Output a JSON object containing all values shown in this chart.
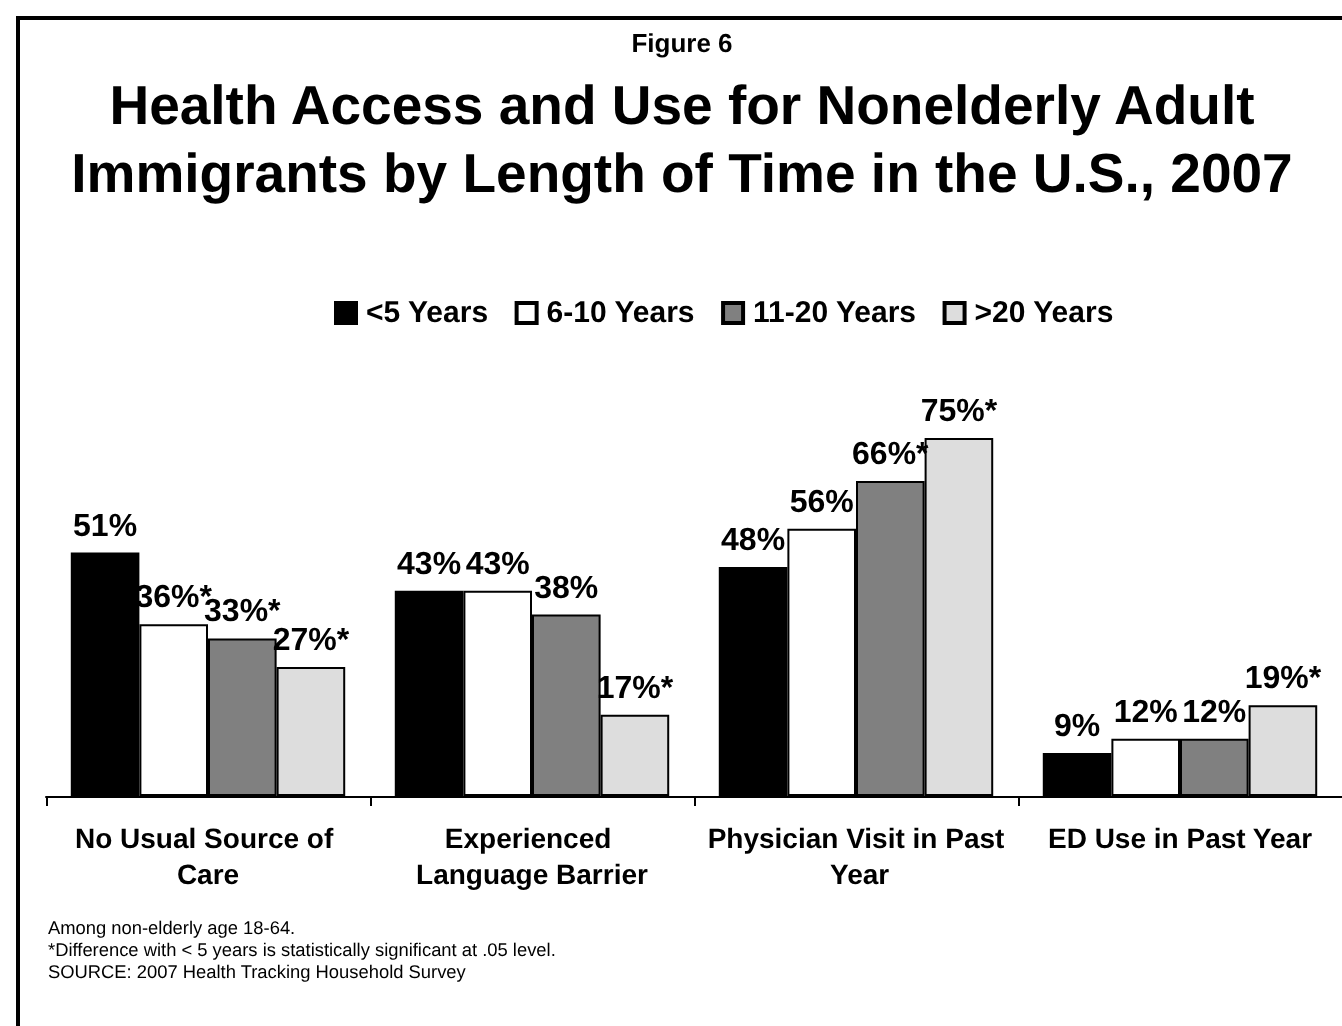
{
  "chart_data": {
    "type": "bar",
    "subtitle": "Figure 6",
    "title": "Health Access and Use for Nonelderly Adult Immigrants by Length of Time in the U.S., 2007",
    "categories": [
      "No Usual Source of Care",
      "Experienced Language Barrier",
      "Physician Visit in Past Year",
      "ED Use in Past Year"
    ],
    "series": [
      {
        "name": "<5 Years",
        "color": "#000000",
        "values": [
          51,
          43,
          48,
          9
        ],
        "value_labels": [
          "51%",
          "43%",
          "48%",
          "9%"
        ]
      },
      {
        "name": "6-10 Years",
        "color": "#ffffff",
        "values": [
          36,
          43,
          56,
          12
        ],
        "value_labels": [
          "36%*",
          "43%",
          "56%",
          "12%"
        ]
      },
      {
        "name": "11-20 Years",
        "color": "#808080",
        "values": [
          33,
          38,
          66,
          12
        ],
        "value_labels": [
          "33%*",
          "38%",
          "66%*",
          "12%"
        ]
      },
      {
        "name": ">20 Years",
        "color": "#dddddd",
        "values": [
          27,
          17,
          75,
          19
        ],
        "value_labels": [
          "27%*",
          "17%*",
          "75%*",
          "19%*"
        ]
      }
    ],
    "legend": "top",
    "annotations": [
      "Among non-elderly age 18-64.",
      "*Difference with < 5 years is statistically significant at .05 level.",
      "SOURCE: 2007 Health Tracking Household Survey"
    ]
  }
}
